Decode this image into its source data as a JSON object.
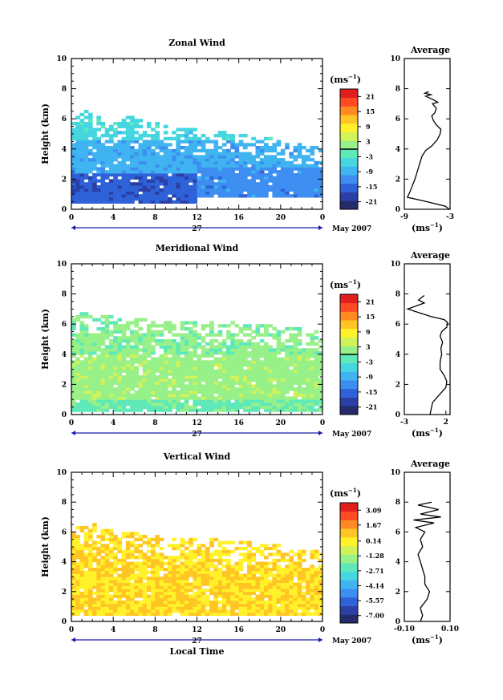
{
  "chart_data": [
    {
      "type": "heatmap",
      "title": "Zonal Wind",
      "ylabel": "Height (km)",
      "ylim": [
        0,
        10
      ],
      "yticks": [
        "0",
        "2",
        "4",
        "6",
        "8",
        "10"
      ],
      "xticks": [
        "0",
        "4",
        "8",
        "12",
        "16",
        "20",
        "0"
      ],
      "day_label": "27",
      "date_label": "May 2007",
      "colorbar": {
        "unit_base": "(ms",
        "unit_exp": "−1",
        "unit_close": ")",
        "ticks": [
          "21",
          "15",
          "9",
          "3",
          "-3",
          "-9",
          "-15",
          "-21"
        ],
        "range": [
          -24,
          24
        ],
        "contour_value": 0
      },
      "profile": {
        "title": "Average",
        "xlabel_base": "(ms",
        "xlabel_exp": "−1",
        "xlabel_close": ")",
        "xticks": [
          "-9",
          "-3"
        ],
        "xlim": [
          -9,
          -3
        ],
        "ylim": [
          0,
          10
        ],
        "yticks": [
          "0",
          "2",
          "4",
          "6",
          "8",
          "10"
        ],
        "points": [
          [
            -3.1,
            0.0
          ],
          [
            -3.6,
            0.2
          ],
          [
            -6.0,
            0.5
          ],
          [
            -8.6,
            0.8
          ],
          [
            -8.3,
            1.1
          ],
          [
            -8.0,
            1.5
          ],
          [
            -7.6,
            2.0
          ],
          [
            -7.3,
            2.5
          ],
          [
            -7.0,
            3.0
          ],
          [
            -6.7,
            3.5
          ],
          [
            -6.2,
            3.9
          ],
          [
            -5.4,
            4.2
          ],
          [
            -4.7,
            4.6
          ],
          [
            -4.3,
            5.0
          ],
          [
            -4.2,
            5.3
          ],
          [
            -4.8,
            5.6
          ],
          [
            -5.2,
            5.9
          ],
          [
            -5.4,
            6.2
          ],
          [
            -5.0,
            6.4
          ],
          [
            -4.8,
            6.7
          ],
          [
            -5.3,
            7.0
          ],
          [
            -4.6,
            7.1
          ],
          [
            -5.3,
            7.3
          ],
          [
            -6.2,
            7.5
          ],
          [
            -5.5,
            7.6
          ],
          [
            -6.3,
            7.7
          ],
          [
            -5.8,
            7.8
          ]
        ]
      },
      "field": {
        "col_top_km": [
          6.4,
          6.5,
          6.3,
          6.1,
          6.0,
          5.9,
          6.0,
          6.2,
          6.0,
          5.7,
          5.6,
          5.8,
          5.5,
          5.4,
          5.3,
          5.5,
          5.2,
          5.1,
          5.0,
          5.2,
          4.9,
          4.8,
          4.9,
          4.7,
          4.6,
          4.8,
          4.6,
          4.5,
          4.4,
          4.3,
          4.2,
          4.1,
          4.0
        ],
        "layers": [
          {
            "bottom": 0.4,
            "top": 2.3,
            "x_from": 0.0,
            "x_to": 12.0,
            "value": -16
          },
          {
            "bottom": 0.8,
            "top": 2.8,
            "x_from": 12.0,
            "x_to": 24.0,
            "value": -12
          },
          {
            "bottom": 2.3,
            "top": 4.6,
            "x_from": 0.0,
            "x_to": 24.0,
            "value": -9
          },
          {
            "bottom": 4.6,
            "top": 6.6,
            "x_from": 0.0,
            "x_to": 24.0,
            "value": -5
          }
        ]
      }
    },
    {
      "type": "heatmap",
      "title": "Meridional Wind",
      "ylabel": "Height (km)",
      "ylim": [
        0,
        10
      ],
      "yticks": [
        "0",
        "2",
        "4",
        "6",
        "8",
        "10"
      ],
      "xticks": [
        "0",
        "4",
        "8",
        "12",
        "16",
        "20",
        "0"
      ],
      "day_label": "27",
      "date_label": "May 2007",
      "colorbar": {
        "unit_base": "(ms",
        "unit_exp": "−1",
        "unit_close": ")",
        "ticks": [
          "21",
          "15",
          "9",
          "3",
          "-3",
          "-9",
          "-15",
          "-21"
        ],
        "range": [
          -24,
          24
        ],
        "contour_value": 0
      },
      "profile": {
        "title": "Average",
        "xlabel_base": "(ms",
        "xlabel_exp": "−1",
        "xlabel_close": ")",
        "xticks": [
          "-3",
          "2"
        ],
        "xlim": [
          -3,
          2.5
        ],
        "ylim": [
          0,
          10
        ],
        "yticks": [
          "0",
          "2",
          "4",
          "6",
          "8",
          "10"
        ],
        "points": [
          [
            0.1,
            0.0
          ],
          [
            0.2,
            0.3
          ],
          [
            0.4,
            0.8
          ],
          [
            1.2,
            1.3
          ],
          [
            2.0,
            1.8
          ],
          [
            2.1,
            2.2
          ],
          [
            1.8,
            2.6
          ],
          [
            1.3,
            3.0
          ],
          [
            1.3,
            3.5
          ],
          [
            1.5,
            4.0
          ],
          [
            1.4,
            4.4
          ],
          [
            1.6,
            4.8
          ],
          [
            1.3,
            5.2
          ],
          [
            1.5,
            5.5
          ],
          [
            2.1,
            5.8
          ],
          [
            2.2,
            6.1
          ],
          [
            1.8,
            6.3
          ],
          [
            0.2,
            6.5
          ],
          [
            -2.6,
            7.0
          ],
          [
            -0.6,
            7.4
          ],
          [
            -1.3,
            7.6
          ],
          [
            -0.6,
            7.9
          ]
        ]
      },
      "field": {
        "col_top_km": [
          6.6,
          6.7,
          6.6,
          6.5,
          6.5,
          6.4,
          6.4,
          6.3,
          6.3,
          6.3,
          6.2,
          6.2,
          6.2,
          6.1,
          6.1,
          6.1,
          6.0,
          6.0,
          6.1,
          6.0,
          6.1,
          6.0,
          5.9,
          5.9,
          6.0,
          5.9,
          5.8,
          6.0,
          5.8,
          5.7,
          5.6,
          5.5,
          5.4
        ],
        "layers": [
          {
            "bottom": 0.2,
            "top": 1.0,
            "x_from": 0.0,
            "x_to": 24.0,
            "value": -1
          },
          {
            "bottom": 1.0,
            "top": 4.0,
            "x_from": 0.0,
            "x_to": 24.0,
            "value": 2
          },
          {
            "bottom": 4.0,
            "top": 6.7,
            "x_from": 0.0,
            "x_to": 24.0,
            "value": 1
          }
        ]
      }
    },
    {
      "type": "heatmap",
      "title": "Vertical Wind",
      "ylabel": "Height (km)",
      "xlabel": "Local Time",
      "ylim": [
        0,
        10
      ],
      "yticks": [
        "0",
        "2",
        "4",
        "6",
        "8",
        "10"
      ],
      "xticks": [
        "0",
        "4",
        "8",
        "12",
        "16",
        "20",
        "0"
      ],
      "day_label": "27",
      "date_label": "May 2007",
      "colorbar": {
        "unit_base": "(ms",
        "unit_exp": "−1",
        "unit_close": ")",
        "ticks": [
          "3.09",
          "1.67",
          "0.14",
          "-1.28",
          "-2.71",
          "-4.14",
          "-5.57",
          "-7.00"
        ],
        "range": [
          -7.71,
          3.8
        ]
      },
      "profile": {
        "title": "Average",
        "xlabel_base": "(ms",
        "xlabel_exp": "−1",
        "xlabel_close": ")",
        "xticks": [
          "-0.10",
          "0.10"
        ],
        "xlim": [
          -0.1,
          0.1
        ],
        "ylim": [
          0,
          10
        ],
        "yticks": [
          "0",
          "2",
          "4",
          "6",
          "8",
          "10"
        ],
        "points": [
          [
            -0.03,
            0.0
          ],
          [
            -0.02,
            0.4
          ],
          [
            -0.03,
            0.9
          ],
          [
            0.0,
            1.5
          ],
          [
            0.01,
            2.0
          ],
          [
            -0.01,
            2.5
          ],
          [
            -0.01,
            3.0
          ],
          [
            -0.02,
            3.5
          ],
          [
            -0.03,
            4.0
          ],
          [
            -0.04,
            4.5
          ],
          [
            -0.02,
            5.0
          ],
          [
            -0.03,
            5.5
          ],
          [
            -0.01,
            6.0
          ],
          [
            -0.05,
            6.3
          ],
          [
            0.03,
            6.6
          ],
          [
            -0.06,
            6.8
          ],
          [
            0.06,
            7.0
          ],
          [
            -0.03,
            7.2
          ],
          [
            0.05,
            7.5
          ],
          [
            -0.04,
            7.8
          ],
          [
            0.02,
            8.0
          ]
        ]
      },
      "field": {
        "col_top_km": [
          6.5,
          6.4,
          6.5,
          6.2,
          6.1,
          6.1,
          6.0,
          5.9,
          6.0,
          5.8,
          5.8,
          5.7,
          5.6,
          5.6,
          5.5,
          5.6,
          5.4,
          5.5,
          5.5,
          5.4,
          5.3,
          5.4,
          5.3,
          5.3,
          5.2,
          5.2,
          5.1,
          5.0,
          5.0,
          4.9,
          4.8,
          4.7,
          4.5
        ],
        "layers": [
          {
            "bottom": 0.3,
            "top": 6.6,
            "x_from": 0.0,
            "x_to": 24.0,
            "value": 0.5
          }
        ]
      }
    }
  ],
  "colors": {
    "palette": [
      "#242b6b",
      "#2b3fa5",
      "#2f62d9",
      "#3d8ef0",
      "#3fb4f0",
      "#45d6e0",
      "#5fe8b8",
      "#98f088",
      "#d2f25a",
      "#fff22a",
      "#ffc524",
      "#ff8a22",
      "#ff4a24",
      "#e21e1e"
    ],
    "missing": "#ffffff",
    "line": "#000000",
    "time_bar": "#1a1aaa"
  }
}
